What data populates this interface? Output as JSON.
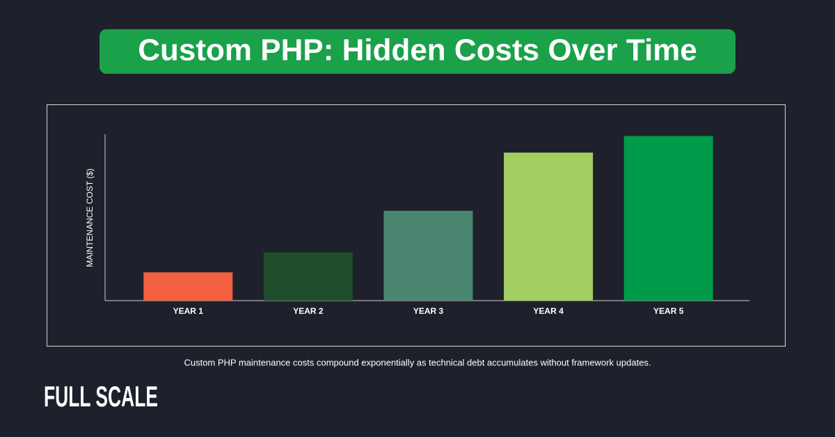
{
  "chart_data": {
    "type": "bar",
    "title": "Custom PHP: Hidden Costs Over Time",
    "y_label": "MAINTENANCE COST ($)",
    "categories": [
      "YEAR 1",
      "YEAR 2",
      "YEAR 3",
      "YEAR 4",
      "YEAR 5"
    ],
    "values": [
      17,
      29,
      54,
      89,
      99
    ],
    "colors": [
      "#f26040",
      "#1f4d2b",
      "#4a8570",
      "#a3cf62",
      "#009b4a"
    ],
    "ylim": [
      0,
      100
    ],
    "caption": "Custom PHP maintenance costs compound exponentially as technical debt accumulates without framework updates."
  },
  "brand": "FULL SCALE"
}
